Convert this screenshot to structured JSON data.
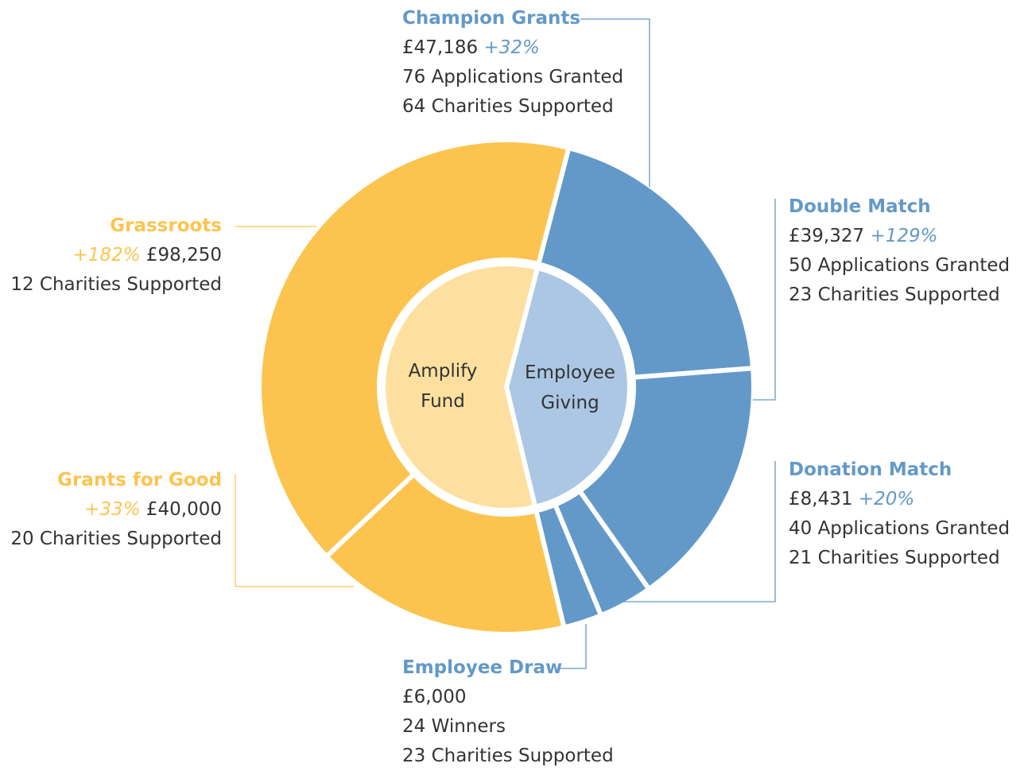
{
  "chart_data": {
    "type": "sunburst",
    "groups": [
      {
        "name": "Employee Giving",
        "color": "#abc7e3",
        "children": [
          {
            "name": "Champion Grants",
            "color": "#6399c8",
            "value": 47186,
            "value_label": "£47,186",
            "change": "+32%",
            "details": [
              "76 Applications Granted",
              "64 Charities Supported"
            ]
          },
          {
            "name": "Double Match",
            "color": "#6399c8",
            "value": 39327,
            "value_label": "£39,327",
            "change": "+129%",
            "details": [
              "50 Applications Granted",
              "23 Charities Supported"
            ]
          },
          {
            "name": "Donation Match",
            "color": "#6399c8",
            "value": 8431,
            "value_label": "£8,431",
            "change": "+20%",
            "details": [
              "40 Applications Granted",
              "21 Charities Supported"
            ]
          },
          {
            "name": "Employee Draw",
            "color": "#6399c8",
            "value": 6000,
            "value_label": "£6,000",
            "details": [
              "24 Winners",
              "23 Charities Supported"
            ]
          }
        ]
      },
      {
        "name": "Amplify Fund",
        "color": "#fde09f",
        "children": [
          {
            "name": "Grants for Good",
            "color": "#fcc44f",
            "value": 40000,
            "value_label": "£40,000",
            "change": "+33%",
            "details": [
              "20 Charities Supported"
            ]
          },
          {
            "name": "Grassroots",
            "color": "#fcc44f",
            "value": 98250,
            "value_label": "£98,250",
            "change": "+182%",
            "details": [
              "12 Charities Supported"
            ]
          }
        ]
      }
    ]
  }
}
